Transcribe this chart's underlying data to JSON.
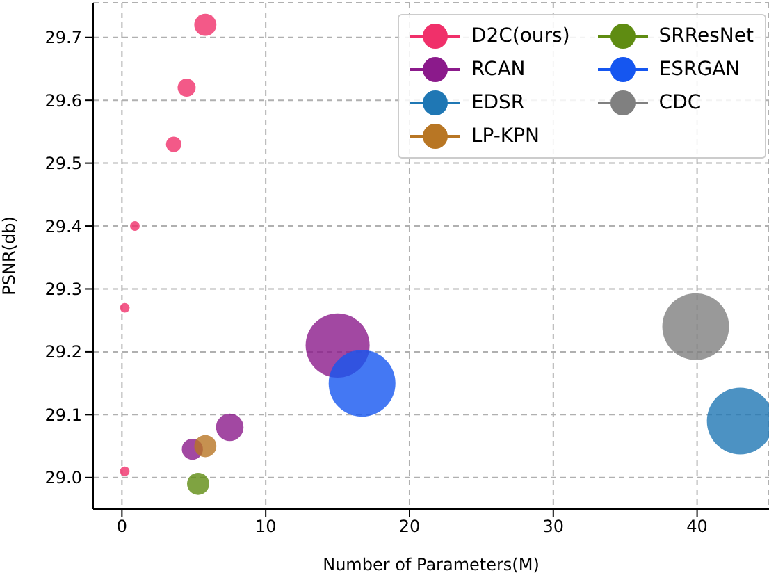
{
  "chart_data": {
    "type": "bubble",
    "xlabel": "Number of Parameters(M)",
    "ylabel": "PSNR(db)",
    "xlim": [
      -2,
      45
    ],
    "ylim": [
      28.95,
      29.755
    ],
    "xticks": [
      0,
      10,
      20,
      30,
      40
    ],
    "yticks": [
      {
        "value": 29,
        "label": "29.0"
      },
      29.1,
      29.2,
      29.3,
      29.4,
      29.5,
      29.6,
      29.7
    ],
    "grid": true,
    "legend": "top right",
    "marker": "circle",
    "series": [
      {
        "name": "D2C(ours)",
        "color": "#f0306a",
        "x": [
          5.8,
          4.5,
          3.6,
          0.9,
          0.2,
          0.2
        ],
        "values": [
          29.72,
          29.62,
          29.53,
          29.4,
          29.27,
          29.01
        ],
        "sizes": [
          0.11,
          0.073,
          0.053,
          0.021,
          0.021,
          0.021
        ]
      },
      {
        "name": "RCAN",
        "color": "#8b1a8b",
        "x": [
          15,
          7.5,
          4.9
        ],
        "values": [
          29.21,
          29.08,
          29.045
        ],
        "sizes": [
          0.92,
          0.17,
          0.1
        ]
      },
      {
        "name": "EDSR",
        "color": "#1f77b4",
        "x": [
          43
        ],
        "values": [
          29.09
        ],
        "sizes": [
          1
        ]
      },
      {
        "name": "LP-KPN",
        "color": "#b87624",
        "x": [
          5.8
        ],
        "values": [
          29.05
        ],
        "sizes": [
          0.11
        ]
      },
      {
        "name": "SRResNet",
        "color": "#5f8c12",
        "x": [
          5.3
        ],
        "values": [
          28.99
        ],
        "sizes": [
          0.11
        ]
      },
      {
        "name": "ESRGAN",
        "color": "#1556f0",
        "x": [
          16.7
        ],
        "values": [
          29.15
        ],
        "sizes": [
          1
        ]
      },
      {
        "name": "CDC",
        "color": "#808080",
        "x": [
          39.9
        ],
        "values": [
          29.24
        ],
        "sizes": [
          1
        ]
      }
    ]
  }
}
